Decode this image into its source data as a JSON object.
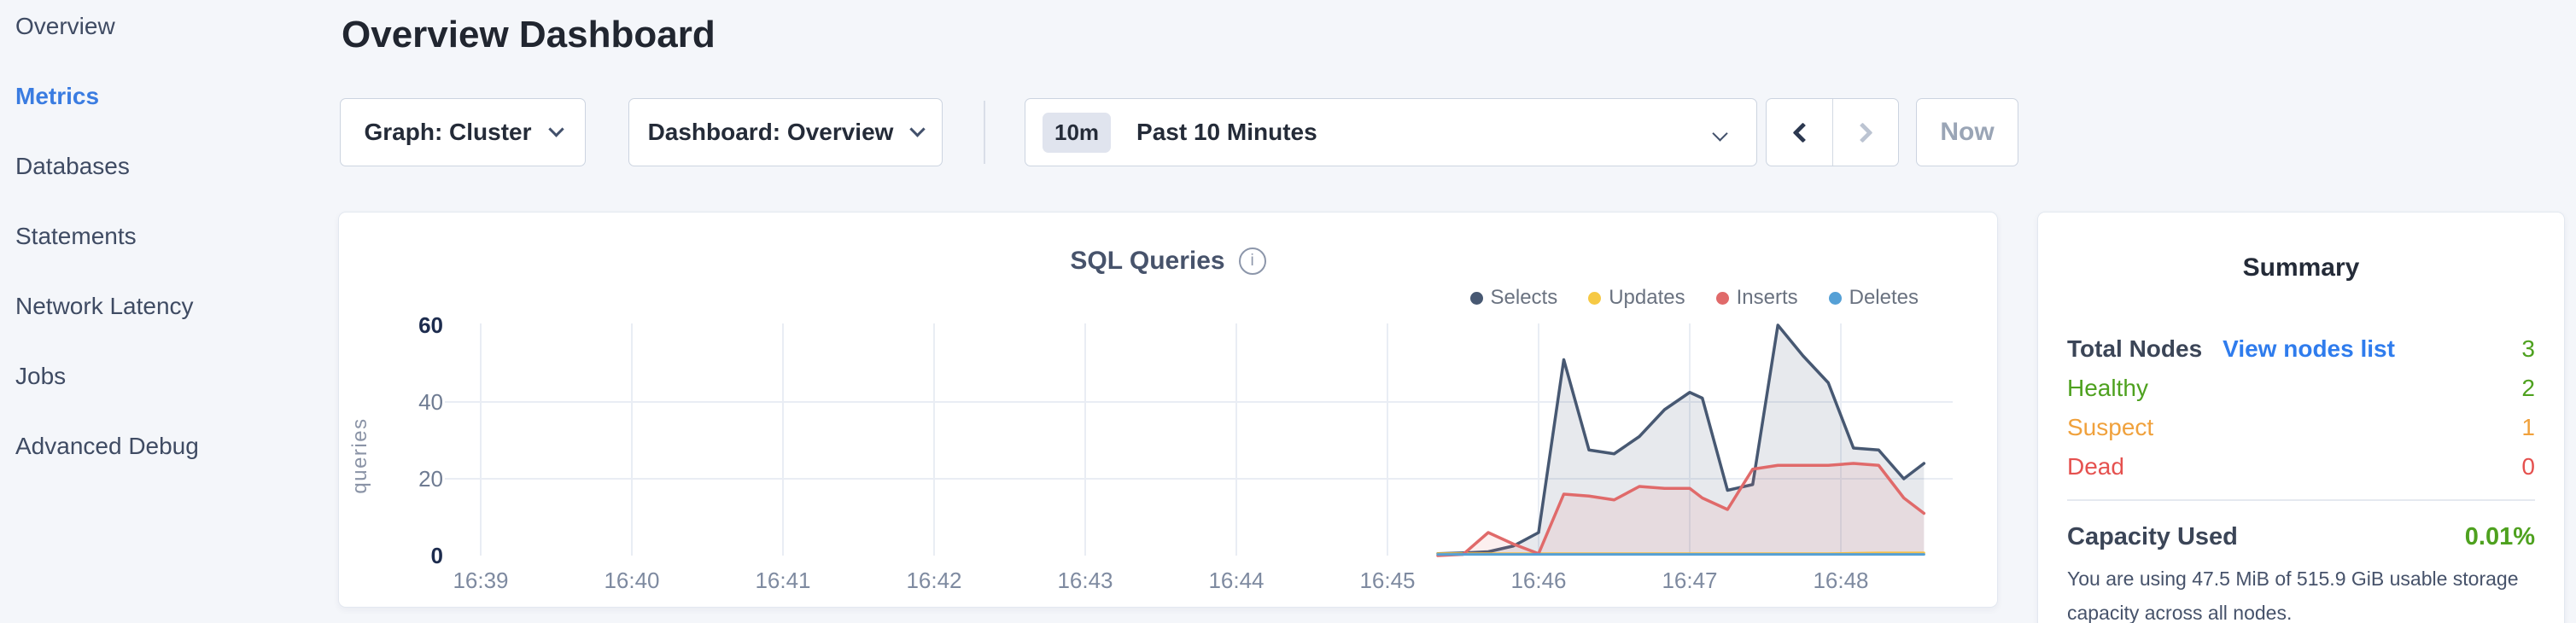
{
  "page": {
    "title": "Overview Dashboard"
  },
  "sidebar": {
    "items": [
      {
        "label": "Overview",
        "active": false
      },
      {
        "label": "Metrics",
        "active": true
      },
      {
        "label": "Databases",
        "active": false
      },
      {
        "label": "Statements",
        "active": false
      },
      {
        "label": "Network Latency",
        "active": false
      },
      {
        "label": "Jobs",
        "active": false
      },
      {
        "label": "Advanced Debug",
        "active": false
      }
    ],
    "active_color": "#3a7ce1"
  },
  "toolbar": {
    "graph_dropdown": {
      "label": "Graph: Cluster"
    },
    "dashboard_dropdown": {
      "label": "Dashboard: Overview"
    },
    "time_picker": {
      "badge": "10m",
      "label": "Past 10 Minutes"
    },
    "now_label": "Now"
  },
  "chart_data": {
    "type": "area",
    "title": "SQL Queries",
    "ylabel": "queries",
    "x_ticks": [
      "16:39",
      "16:40",
      "16:41",
      "16:42",
      "16:43",
      "16:44",
      "16:45",
      "16:46",
      "16:47",
      "16:48"
    ],
    "y_ticks": [
      0,
      20,
      40,
      60
    ],
    "ylim": [
      0,
      60
    ],
    "grid": true,
    "legend_position": "top-right",
    "x": [
      "16:45:20",
      "16:45:30",
      "16:45:40",
      "16:45:50",
      "16:46:00",
      "16:46:10",
      "16:46:20",
      "16:46:30",
      "16:46:40",
      "16:46:50",
      "16:47:00",
      "16:47:05",
      "16:47:15",
      "16:47:25",
      "16:47:35",
      "16:47:45",
      "16:47:55",
      "16:48:05",
      "16:48:15",
      "16:48:25",
      "16:48:33"
    ],
    "series": [
      {
        "name": "Selects",
        "color": "#475872",
        "fill": "rgba(71,88,114,0.13)",
        "width": 3.5,
        "values": [
          0.5,
          0.7,
          1,
          2.5,
          6,
          51,
          27.5,
          26.5,
          31,
          38,
          42.5,
          41,
          17,
          18.5,
          60,
          52,
          45,
          28,
          27.5,
          20,
          24
        ]
      },
      {
        "name": "Updates",
        "color": "#f6c944",
        "fill": "rgba(246,201,68,0.12)",
        "width": 3,
        "values": [
          0.5,
          0.5,
          0.5,
          0.5,
          0.5,
          0.5,
          0.5,
          0.5,
          0.5,
          0.5,
          0.5,
          0.5,
          0.5,
          0.5,
          0.5,
          0.5,
          0.5,
          0.6,
          0.7,
          0.7,
          0.7
        ]
      },
      {
        "name": "Inserts",
        "color": "#e06a6a",
        "fill": "rgba(224,106,106,0.11)",
        "width": 3.5,
        "values": [
          0,
          0.3,
          6,
          3,
          0.5,
          16,
          15.5,
          14.5,
          18,
          17.5,
          17.5,
          15,
          12,
          22.5,
          23.5,
          23.5,
          23.5,
          24,
          23.5,
          15,
          11
        ]
      },
      {
        "name": "Deletes",
        "color": "#55a0d6",
        "fill": "rgba(85,160,214,0.11)",
        "width": 3,
        "values": [
          0.3,
          0.3,
          0.3,
          0.3,
          0.3,
          0.3,
          0.3,
          0.3,
          0.3,
          0.3,
          0.3,
          0.3,
          0.3,
          0.3,
          0.3,
          0.3,
          0.3,
          0.3,
          0.3,
          0.3,
          0.3
        ]
      }
    ],
    "axis_colors": {
      "tick": "#7e8aa0",
      "y_mid": "#6e7b92",
      "y_emphasis": "#1d2c4e",
      "grid": "#e9edf4",
      "ylabel": "#8a93a6"
    }
  },
  "summary": {
    "title": "Summary",
    "rows": [
      {
        "label": "Total Nodes",
        "bold": true,
        "label_color": "#3b4557",
        "link": "View nodes list",
        "value": "3",
        "value_color": "#4ea11f"
      },
      {
        "label": "Healthy",
        "bold": false,
        "label_color": "#4ea11f",
        "link": null,
        "value": "2",
        "value_color": "#4ea11f"
      },
      {
        "label": "Suspect",
        "bold": false,
        "label_color": "#f0a13c",
        "link": null,
        "value": "1",
        "value_color": "#f0a13c"
      },
      {
        "label": "Dead",
        "bold": false,
        "label_color": "#e5514f",
        "link": null,
        "value": "0",
        "value_color": "#e5514f"
      }
    ],
    "capacity": {
      "label": "Capacity Used",
      "value": "0.01%",
      "value_color": "#4ea11f"
    },
    "capacity_note": "You are using 47.5 MiB of 515.9 GiB usable storage capacity across all nodes.",
    "link_color": "#2f7ced"
  }
}
